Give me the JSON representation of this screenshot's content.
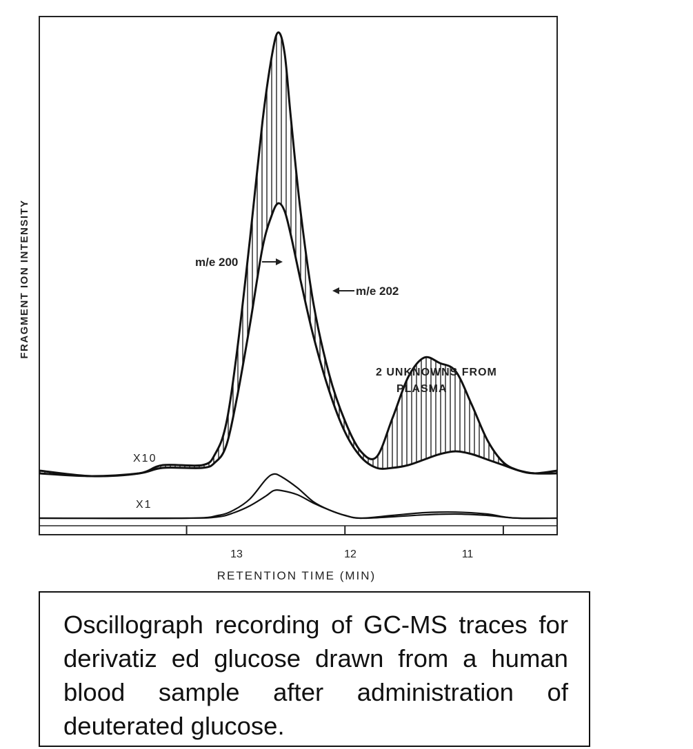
{
  "chart_data": {
    "type": "line",
    "ylabel": "FRAGMENT ION INTENSITY",
    "xlabel": "RETENTION TIME (MIN)",
    "xlim": [
      13.93,
      10.66
    ],
    "x_ticks": [
      13,
      12,
      11
    ],
    "x_tick_labels": [
      "13",
      "12",
      "11"
    ],
    "axis_reversed": true,
    "grid": false,
    "panels": [
      {
        "name": "X10",
        "baseline": 0.0,
        "series": [
          {
            "name": "m/e 200",
            "x": [
              13.93,
              13.6,
              13.3,
              13.15,
              12.9,
              12.82,
              12.75,
              12.68,
              12.6,
              12.52,
              12.46,
              12.42,
              12.38,
              12.34,
              12.28,
              12.2,
              12.1,
              12.0,
              11.9,
              11.8,
              11.7,
              11.6,
              11.5,
              11.4,
              11.3,
              11.2,
              11.1,
              11.0,
              10.9,
              10.8,
              10.66
            ],
            "y": [
              0.01,
              -0.01,
              0.0,
              0.03,
              0.03,
              0.07,
              0.18,
              0.45,
              0.85,
              1.28,
              1.52,
              1.6,
              1.52,
              1.28,
              0.95,
              0.62,
              0.36,
              0.19,
              0.08,
              0.06,
              0.2,
              0.35,
              0.42,
              0.4,
              0.37,
              0.25,
              0.12,
              0.04,
              0.01,
              0.0,
              0.01
            ]
          },
          {
            "name": "m/e 202",
            "x": [
              13.93,
              13.6,
              13.3,
              13.15,
              12.9,
              12.82,
              12.75,
              12.68,
              12.6,
              12.52,
              12.46,
              12.42,
              12.38,
              12.34,
              12.28,
              12.2,
              12.1,
              12.0,
              11.9,
              11.8,
              11.7,
              11.6,
              11.5,
              11.4,
              11.3,
              11.2,
              11.1,
              11.0,
              10.9,
              10.8,
              10.66
            ],
            "y": [
              0.0,
              -0.01,
              0.0,
              0.02,
              0.02,
              0.04,
              0.1,
              0.28,
              0.54,
              0.82,
              0.94,
              0.98,
              0.95,
              0.86,
              0.7,
              0.5,
              0.3,
              0.15,
              0.06,
              0.02,
              0.02,
              0.03,
              0.05,
              0.07,
              0.08,
              0.07,
              0.05,
              0.03,
              0.01,
              0.0,
              0.0
            ]
          }
        ]
      },
      {
        "name": "X1",
        "baseline": 0.0,
        "series": [
          {
            "name": "m/e 200",
            "x": [
              13.93,
              13.0,
              12.8,
              12.7,
              12.6,
              12.5,
              12.45,
              12.4,
              12.3,
              12.2,
              12.1,
              12.0,
              11.9,
              11.7,
              11.5,
              11.3,
              11.1,
              11.0,
              10.9,
              10.66
            ],
            "y": [
              0.0,
              0.0,
              0.01,
              0.03,
              0.07,
              0.14,
              0.16,
              0.15,
              0.11,
              0.06,
              0.03,
              0.01,
              0.0,
              0.01,
              0.02,
              0.022,
              0.015,
              0.005,
              0.0,
              0.0
            ]
          },
          {
            "name": "m/e 202",
            "x": [
              13.93,
              13.0,
              12.8,
              12.7,
              12.6,
              12.5,
              12.45,
              12.4,
              12.3,
              12.2,
              12.1,
              12.0,
              11.9,
              11.7,
              11.5,
              11.3,
              11.1,
              11.0,
              10.9,
              10.66
            ],
            "y": [
              0.0,
              0.0,
              0.005,
              0.02,
              0.045,
              0.08,
              0.1,
              0.1,
              0.085,
              0.055,
              0.03,
              0.01,
              0.0,
              0.005,
              0.012,
              0.015,
              0.01,
              0.004,
              0.0,
              0.0
            ]
          }
        ]
      }
    ],
    "annotations": [
      {
        "text": "m/e 200",
        "target": "m/e 200 (X10)"
      },
      {
        "text": "m/e 202",
        "target": "m/e 202 (X10)"
      },
      {
        "text": "2 UNKNOWNS FROM",
        "target": "plasma peaks"
      },
      {
        "text": "PLASMA",
        "target": "plasma peaks"
      },
      {
        "text": "X10",
        "target": "upper traces"
      },
      {
        "text": "X1",
        "target": "lower traces"
      }
    ]
  },
  "caption": {
    "lines": [
      "Oscillograph recording of GC-MS traces",
      "for  derivatiz ed glucose drawn from a",
      "human    blood    sample    after",
      "administration of deuterated glucose."
    ]
  }
}
